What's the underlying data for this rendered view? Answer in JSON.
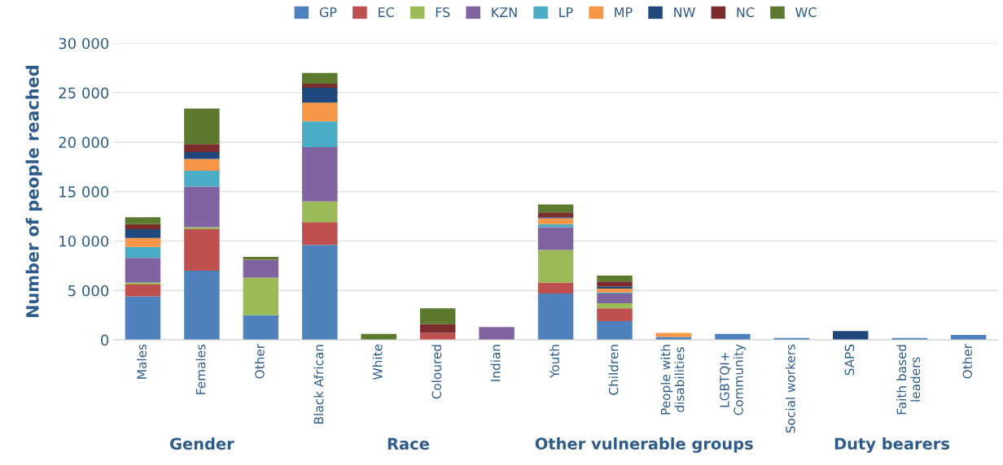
{
  "chart_data": {
    "type": "bar",
    "stacked": true,
    "ylabel": "Number of people reached",
    "categories": [
      "Males",
      "Females",
      "Other",
      "Black African",
      "White",
      "Coloured",
      "Indian",
      "Youth",
      "Children",
      "People with\ndisabilities",
      "LGBTQI+\nCommunity",
      "Social workers",
      "SAPS",
      "Faith based\nleaders",
      "Other"
    ],
    "series": [
      {
        "name": "GP",
        "color": "#4f81bd",
        "values": [
          4400,
          7000,
          2500,
          9600,
          0,
          0,
          0,
          4700,
          1900,
          300,
          600,
          200,
          0,
          200,
          500
        ]
      },
      {
        "name": "EC",
        "color": "#c0504d",
        "values": [
          1200,
          4200,
          0,
          2300,
          0,
          700,
          0,
          1100,
          1300,
          0,
          0,
          0,
          0,
          0,
          0
        ]
      },
      {
        "name": "FS",
        "color": "#9bbb59",
        "values": [
          200,
          200,
          3800,
          2100,
          0,
          0,
          0,
          3300,
          500,
          0,
          0,
          0,
          0,
          0,
          0
        ]
      },
      {
        "name": "KZN",
        "color": "#8064a2",
        "values": [
          2500,
          4100,
          1800,
          5500,
          0,
          0,
          1300,
          2300,
          1000,
          0,
          0,
          0,
          0,
          0,
          0
        ]
      },
      {
        "name": "LP",
        "color": "#4bacc6",
        "values": [
          1100,
          1600,
          0,
          2600,
          0,
          0,
          0,
          300,
          100,
          0,
          0,
          0,
          0,
          0,
          0
        ]
      },
      {
        "name": "MP",
        "color": "#f79646",
        "values": [
          900,
          1200,
          0,
          1900,
          0,
          0,
          0,
          600,
          400,
          400,
          0,
          0,
          0,
          0,
          0
        ]
      },
      {
        "name": "NW",
        "color": "#1f497d",
        "values": [
          900,
          700,
          0,
          1500,
          0,
          0,
          0,
          100,
          200,
          0,
          0,
          0,
          900,
          0,
          0
        ]
      },
      {
        "name": "NC",
        "color": "#7b2c2c",
        "values": [
          500,
          800,
          0,
          400,
          0,
          900,
          0,
          500,
          500,
          0,
          0,
          0,
          0,
          0,
          0
        ]
      },
      {
        "name": "WC",
        "color": "#5c7a2e",
        "values": [
          700,
          3600,
          300,
          1100,
          600,
          1600,
          0,
          800,
          600,
          0,
          0,
          0,
          0,
          0,
          0
        ]
      }
    ],
    "ylim": [
      0,
      30000
    ],
    "yticks": [
      0,
      {
        "value": 5000,
        "label": "5 000"
      },
      {
        "value": 10000,
        "label": "10 000"
      },
      {
        "value": 15000,
        "label": "15 000"
      },
      {
        "value": 20000,
        "label": "20 000"
      },
      {
        "value": 25000,
        "label": "25 000"
      },
      {
        "value": 30000,
        "label": "30 000"
      }
    ],
    "grid": "y",
    "legend": "top",
    "annotations": [
      "Gender",
      "Race",
      "Other vulnerable groups",
      "Duty bearers"
    ]
  }
}
